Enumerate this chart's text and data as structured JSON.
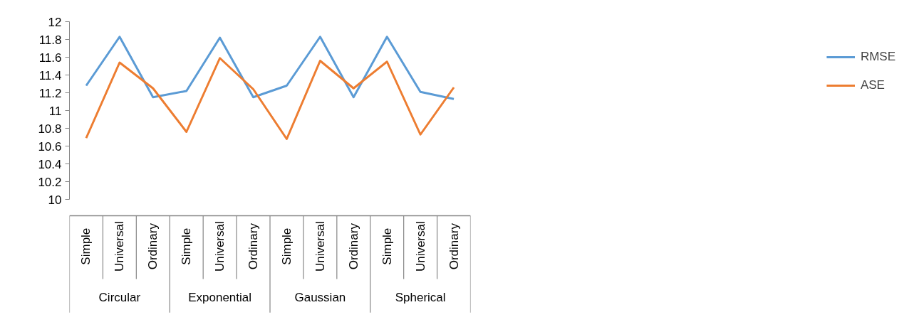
{
  "chart_data": {
    "type": "line",
    "categories": [
      "Simple",
      "Universal",
      "Ordinary",
      "Simple",
      "Universal",
      "Ordinary",
      "Simple",
      "Universal",
      "Ordinary",
      "Simple",
      "Universal",
      "Ordinary"
    ],
    "annotations": [
      "Circular",
      "Exponential",
      "Gaussian",
      "Spherical"
    ],
    "series": [
      {
        "name": "RMSE",
        "color": "#5b9bd5",
        "values": [
          11.28,
          11.83,
          11.15,
          11.22,
          11.82,
          11.15,
          11.28,
          11.83,
          11.15,
          11.83,
          11.21,
          11.13
        ]
      },
      {
        "name": "ASE",
        "color": "#ed7d31",
        "values": [
          10.69,
          11.54,
          11.25,
          10.76,
          11.59,
          11.24,
          10.68,
          11.56,
          11.25,
          11.55,
          10.73,
          11.26
        ]
      }
    ],
    "ylim": [
      10,
      12
    ],
    "yticks": [
      10,
      10.2,
      10.4,
      10.6,
      10.8,
      11,
      11.2,
      11.4,
      11.6,
      11.8,
      12
    ],
    "legend": "right",
    "marker": "none",
    "line_style": "solid"
  }
}
